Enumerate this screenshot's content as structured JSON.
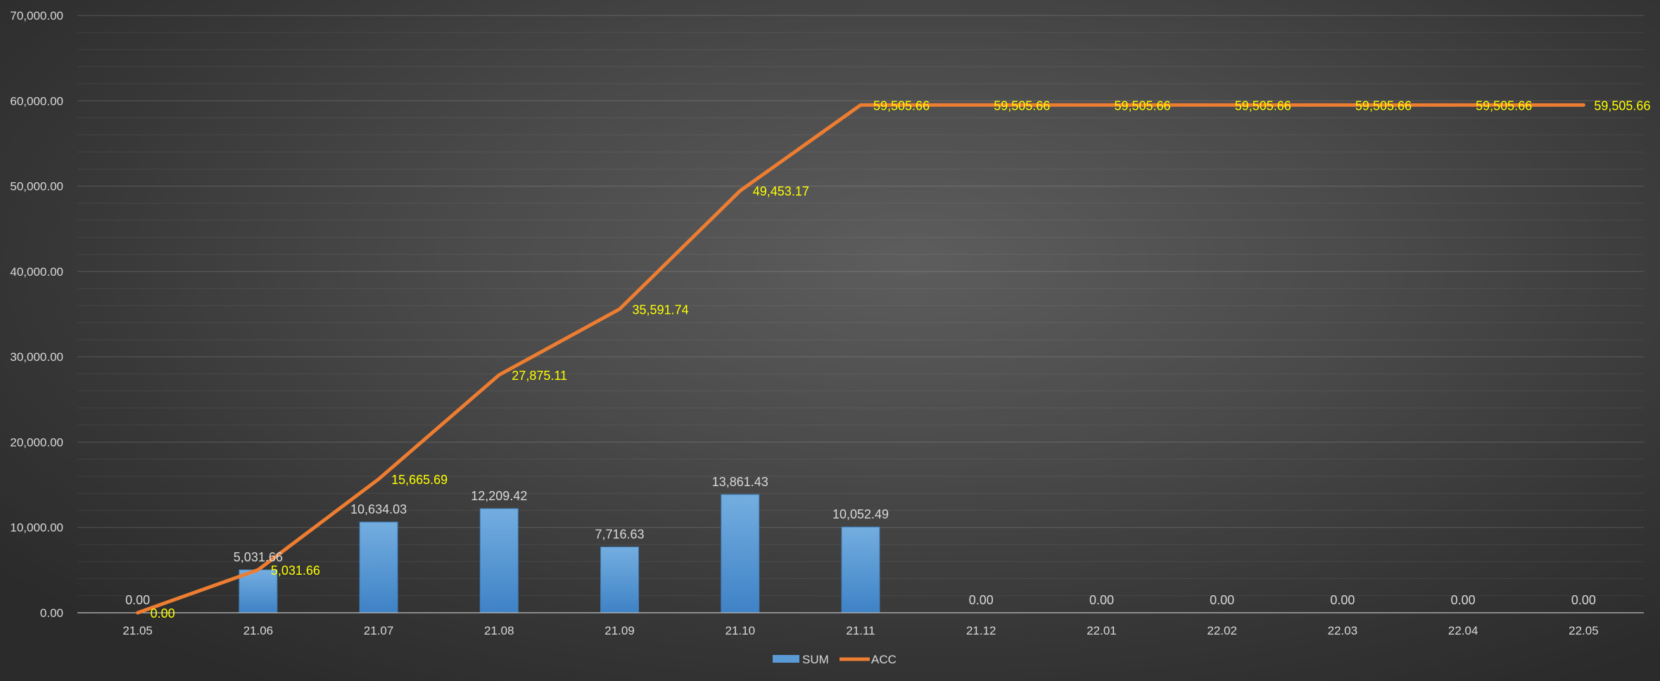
{
  "chart_data": {
    "type": "bar",
    "title": "",
    "xlabel": "",
    "ylabel": "",
    "categories": [
      "21.05",
      "21.06",
      "21.07",
      "21.08",
      "21.09",
      "21.10",
      "21.11",
      "21.12",
      "22.01",
      "22.02",
      "22.03",
      "22.04",
      "22.05"
    ],
    "series": [
      {
        "name": "SUM",
        "type": "bar",
        "color": "#5b9bd5",
        "values": [
          0,
          5031.66,
          10634.03,
          12209.42,
          7716.63,
          13861.43,
          10052.49,
          0,
          0,
          0,
          0,
          0,
          0
        ],
        "labels": [
          "0.00",
          "5,031.66",
          "10,634.03",
          "12,209.42",
          "7,716.63",
          "13,861.43",
          "10,052.49",
          "0.00",
          "0.00",
          "0.00",
          "0.00",
          "0.00",
          "0.00"
        ]
      },
      {
        "name": "ACC",
        "type": "line",
        "color": "#ed7d31",
        "label_color": "#ffff00",
        "values": [
          0,
          5031.66,
          15665.69,
          27875.11,
          35591.74,
          49453.17,
          59505.66,
          59505.66,
          59505.66,
          59505.66,
          59505.66,
          59505.66,
          59505.66
        ],
        "labels": [
          "0.00",
          "5,031.66",
          "15,665.69",
          "27,875.11",
          "35,591.74",
          "49,453.17",
          "59,505.66",
          "59,505.66",
          "59,505.66",
          "59,505.66",
          "59,505.66",
          "59,505.66",
          "59,505.66"
        ]
      }
    ],
    "ylim": [
      0,
      70000
    ],
    "yticks": [
      0,
      10000,
      20000,
      30000,
      40000,
      50000,
      60000,
      70000
    ],
    "ytick_labels": [
      "0.00",
      "10,000.00",
      "20,000.00",
      "30,000.00",
      "40,000.00",
      "50,000.00",
      "60,000.00",
      "70,000.00"
    ],
    "grid": true,
    "minor_grid": true,
    "legend": {
      "position": "bottom-center",
      "entries": [
        "SUM",
        "ACC"
      ]
    },
    "background": "#4a4a4a",
    "text_color": "#d9d9d9"
  }
}
